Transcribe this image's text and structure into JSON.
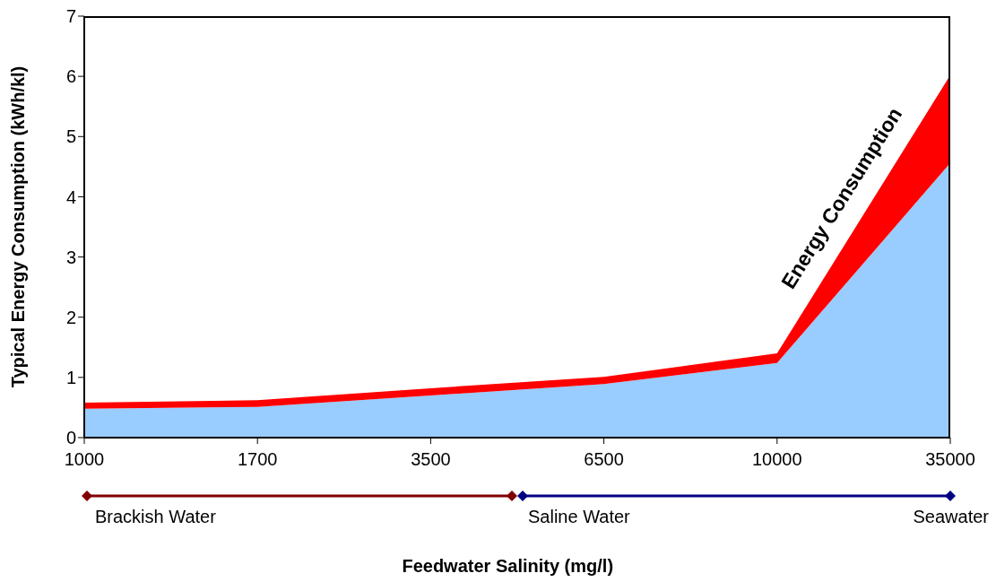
{
  "chart_data": {
    "type": "area",
    "stacked": true,
    "xlabel": "Feedwater Salinity (mg/l)",
    "ylabel": "Typical Energy Consumption (kWh/kl)",
    "categories": [
      "1000",
      "1700",
      "3500",
      "6500",
      "10000",
      "35000"
    ],
    "series": [
      {
        "color": "#99ccff",
        "values": [
          0.48,
          0.51,
          0.7,
          0.89,
          1.24,
          4.56
        ]
      },
      {
        "name": "Energy Consumption",
        "color": "#ff0000",
        "values": [
          0.1,
          0.11,
          0.12,
          0.12,
          0.16,
          1.46
        ]
      }
    ],
    "ylim": [
      0,
      7
    ],
    "yticks": [
      0,
      1,
      2,
      3,
      4,
      5,
      6,
      7
    ],
    "annotations": [
      "Brackish Water",
      "Saline Water",
      "Seawater"
    ]
  }
}
